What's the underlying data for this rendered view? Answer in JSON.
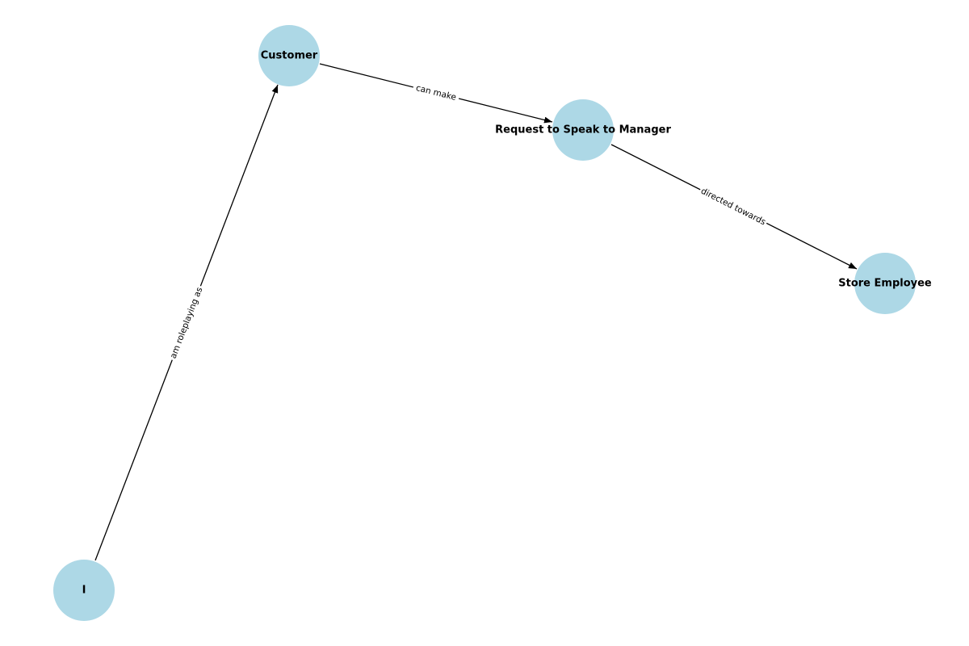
{
  "diagram": {
    "nodes": [
      {
        "id": "customer",
        "label": "Customer"
      },
      {
        "id": "request",
        "label": "Request to Speak to Manager"
      },
      {
        "id": "employee",
        "label": "Store Employee"
      },
      {
        "id": "i",
        "label": "I"
      }
    ],
    "edges": [
      {
        "id": "e1",
        "source": "i",
        "target": "customer",
        "label": "am roleplaying as"
      },
      {
        "id": "e2",
        "source": "customer",
        "target": "request",
        "label": "can make"
      },
      {
        "id": "e3",
        "source": "request",
        "target": "employee",
        "label": "directed towards"
      }
    ],
    "colors": {
      "node_fill": "#add8e6",
      "edge": "#000000",
      "background": "#ffffff"
    }
  }
}
